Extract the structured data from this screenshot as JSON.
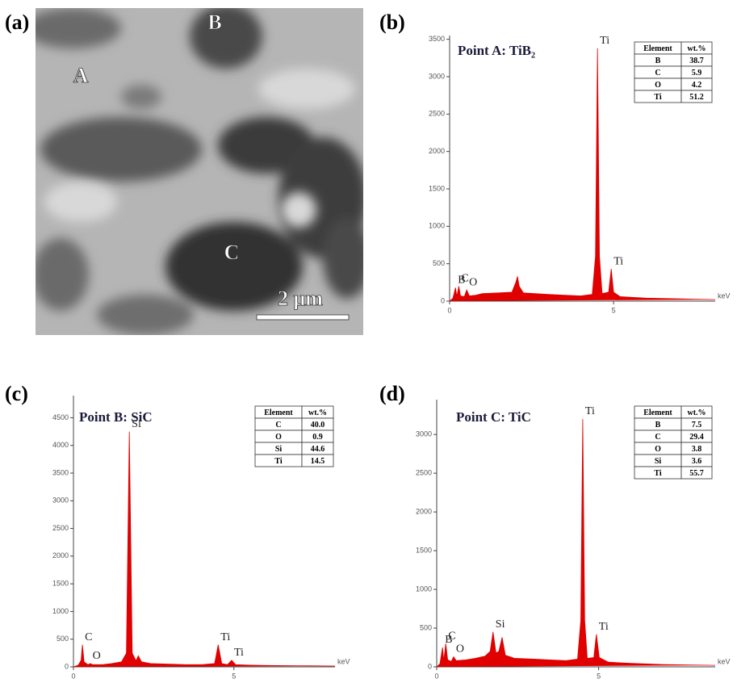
{
  "image_panel": {
    "label": "(a)",
    "markers": [
      "A",
      "B",
      "C"
    ],
    "scale_bar": "2 μm"
  },
  "chart_data": [
    {
      "type": "area",
      "panel_label": "(b)",
      "title": "Point A: TiB₂",
      "x_label": "keV",
      "color": "#e00000",
      "xlim": [
        0,
        8.1
      ],
      "xticks": [
        0,
        5
      ],
      "ylim": [
        0,
        3550
      ],
      "yticks": [
        0,
        500,
        1000,
        1500,
        2000,
        2500,
        3000,
        3500
      ],
      "x": [
        0,
        0.1,
        0.18,
        0.22,
        0.28,
        0.33,
        0.45,
        0.52,
        0.6,
        0.8,
        1.0,
        1.5,
        1.9,
        2.02,
        2.07,
        2.12,
        2.25,
        2.6,
        3.0,
        3.5,
        4.0,
        4.35,
        4.45,
        4.51,
        4.57,
        4.65,
        4.85,
        4.93,
        5.0,
        5.2,
        5.6,
        6.0,
        7.0,
        8.1
      ],
      "values": [
        0,
        40,
        180,
        60,
        200,
        70,
        60,
        150,
        70,
        80,
        100,
        110,
        120,
        250,
        330,
        200,
        110,
        100,
        90,
        80,
        70,
        90,
        600,
        3380,
        600,
        100,
        120,
        430,
        120,
        60,
        50,
        40,
        30,
        20
      ],
      "annotations": [
        {
          "text": "B",
          "x": 0.18
        },
        {
          "text": "C",
          "x": 0.28
        },
        {
          "text": "O",
          "x": 0.52
        },
        {
          "text": "Ti",
          "x": 4.51
        },
        {
          "text": "Ti",
          "x": 4.93
        }
      ],
      "table": {
        "header": [
          "Element",
          "wt.%"
        ],
        "rows": [
          [
            "B",
            "38.7"
          ],
          [
            "C",
            "5.9"
          ],
          [
            "O",
            "4.2"
          ],
          [
            "Ti",
            "51.2"
          ]
        ]
      }
    },
    {
      "type": "area",
      "panel_label": "(c)",
      "title": "Point B: SiC",
      "x_label": "keV",
      "color": "#e00000",
      "xlim": [
        0,
        8.15
      ],
      "xticks": [
        0,
        5
      ],
      "ylim": [
        0,
        4900
      ],
      "yticks": [
        0,
        500,
        1000,
        1500,
        2000,
        2500,
        3000,
        3500,
        4000,
        4500
      ],
      "x": [
        0,
        0.15,
        0.24,
        0.28,
        0.33,
        0.45,
        0.52,
        0.6,
        0.9,
        1.2,
        1.5,
        1.65,
        1.74,
        1.83,
        1.95,
        2.02,
        2.12,
        2.4,
        3.0,
        3.5,
        4.0,
        4.4,
        4.51,
        4.62,
        4.8,
        4.93,
        5.05,
        5.5,
        6.0,
        7.0,
        8.15
      ],
      "values": [
        0,
        30,
        120,
        400,
        90,
        40,
        60,
        40,
        40,
        60,
        90,
        250,
        4250,
        250,
        110,
        200,
        90,
        60,
        50,
        40,
        40,
        60,
        400,
        60,
        40,
        120,
        40,
        30,
        25,
        20,
        15
      ],
      "annotations": [
        {
          "text": "C",
          "x": 0.28
        },
        {
          "text": "O",
          "x": 0.52
        },
        {
          "text": "Si",
          "x": 1.74
        },
        {
          "text": "Ti",
          "x": 4.51
        },
        {
          "text": "Ti",
          "x": 4.93
        }
      ],
      "table": {
        "header": [
          "Element",
          "wt.%"
        ],
        "rows": [
          [
            "C",
            "40.0"
          ],
          [
            "O",
            "0.9"
          ],
          [
            "Si",
            "44.6"
          ],
          [
            "Ti",
            "14.5"
          ]
        ]
      }
    },
    {
      "type": "area",
      "panel_label": "(d)",
      "title": "Point C: TiC",
      "x_label": "keV",
      "color": "#e00000",
      "xlim": [
        0,
        8.6
      ],
      "xticks": [
        0,
        5
      ],
      "ylim": [
        0,
        3450
      ],
      "yticks": [
        0,
        500,
        1000,
        1500,
        2000,
        2500,
        3000
      ],
      "x": [
        0,
        0.1,
        0.18,
        0.22,
        0.28,
        0.34,
        0.45,
        0.52,
        0.6,
        0.9,
        1.2,
        1.5,
        1.65,
        1.74,
        1.83,
        1.92,
        2.02,
        2.12,
        2.4,
        3.0,
        3.5,
        4.0,
        4.35,
        4.45,
        4.51,
        4.57,
        4.65,
        4.85,
        4.93,
        5.02,
        5.3,
        6.0,
        7.0,
        8.6
      ],
      "values": [
        0,
        40,
        250,
        80,
        300,
        90,
        70,
        130,
        80,
        90,
        110,
        140,
        200,
        450,
        180,
        200,
        380,
        150,
        110,
        100,
        90,
        80,
        100,
        600,
        3200,
        600,
        110,
        120,
        420,
        120,
        60,
        45,
        30,
        20
      ],
      "annotations": [
        {
          "text": "B",
          "x": 0.18
        },
        {
          "text": "C",
          "x": 0.28
        },
        {
          "text": "O",
          "x": 0.52
        },
        {
          "text": "Si",
          "x": 1.74
        },
        {
          "text": "Ti",
          "x": 4.51
        },
        {
          "text": "Ti",
          "x": 4.93
        }
      ],
      "table": {
        "header": [
          "Element",
          "wt.%"
        ],
        "rows": [
          [
            "B",
            "7.5"
          ],
          [
            "C",
            "29.4"
          ],
          [
            "O",
            "3.8"
          ],
          [
            "Si",
            "3.6"
          ],
          [
            "Ti",
            "55.7"
          ]
        ]
      }
    }
  ]
}
